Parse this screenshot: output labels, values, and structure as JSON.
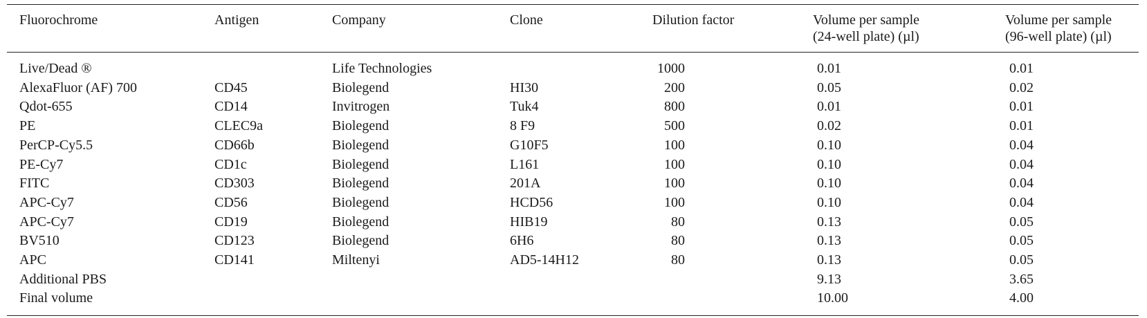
{
  "table": {
    "header": [
      "Fluorochrome",
      "Antigen",
      "Company",
      "Clone",
      "Dilution factor",
      "Volume per sample\n(24-well plate) (µl)",
      "Volume per sample\n(96-well plate) (µl)"
    ],
    "rows": [
      [
        "Live/Dead ®",
        null,
        "Life Technologies",
        null,
        "1000",
        "0.01",
        "0.01"
      ],
      [
        "AlexaFluor (AF) 700",
        "CD45",
        "Biolegend",
        "HI30",
        "200",
        "0.05",
        "0.02"
      ],
      [
        "Qdot-655",
        "CD14",
        "Invitrogen",
        "Tuk4",
        "800",
        "0.01",
        "0.01"
      ],
      [
        "PE",
        "CLEC9a",
        "Biolegend",
        "8 F9",
        "500",
        "0.02",
        "0.01"
      ],
      [
        "PerCP-Cy5.5",
        "CD66b",
        "Biolegend",
        "G10F5",
        "100",
        "0.10",
        "0.04"
      ],
      [
        "PE-Cy7",
        "CD1c",
        "Biolegend",
        "L161",
        "100",
        "0.10",
        "0.04"
      ],
      [
        "FITC",
        "CD303",
        "Biolegend",
        "201A",
        "100",
        "0.10",
        "0.04"
      ],
      [
        "APC-Cy7",
        "CD56",
        "Biolegend",
        "HCD56",
        "100",
        "0.10",
        "0.04"
      ],
      [
        "APC-Cy7",
        "CD19",
        "Biolegend",
        "HIB19",
        "80",
        "0.13",
        "0.05"
      ],
      [
        "BV510",
        "CD123",
        "Biolegend",
        "6H6",
        "80",
        "0.13",
        "0.05"
      ],
      [
        "APC",
        "CD141",
        "Miltenyi",
        "AD5-14H12",
        "80",
        "0.13",
        "0.05"
      ],
      [
        "Additional PBS",
        null,
        null,
        null,
        null,
        "9.13",
        "3.65"
      ],
      [
        "Final volume",
        null,
        null,
        null,
        null,
        "10.00",
        "4.00"
      ]
    ]
  }
}
